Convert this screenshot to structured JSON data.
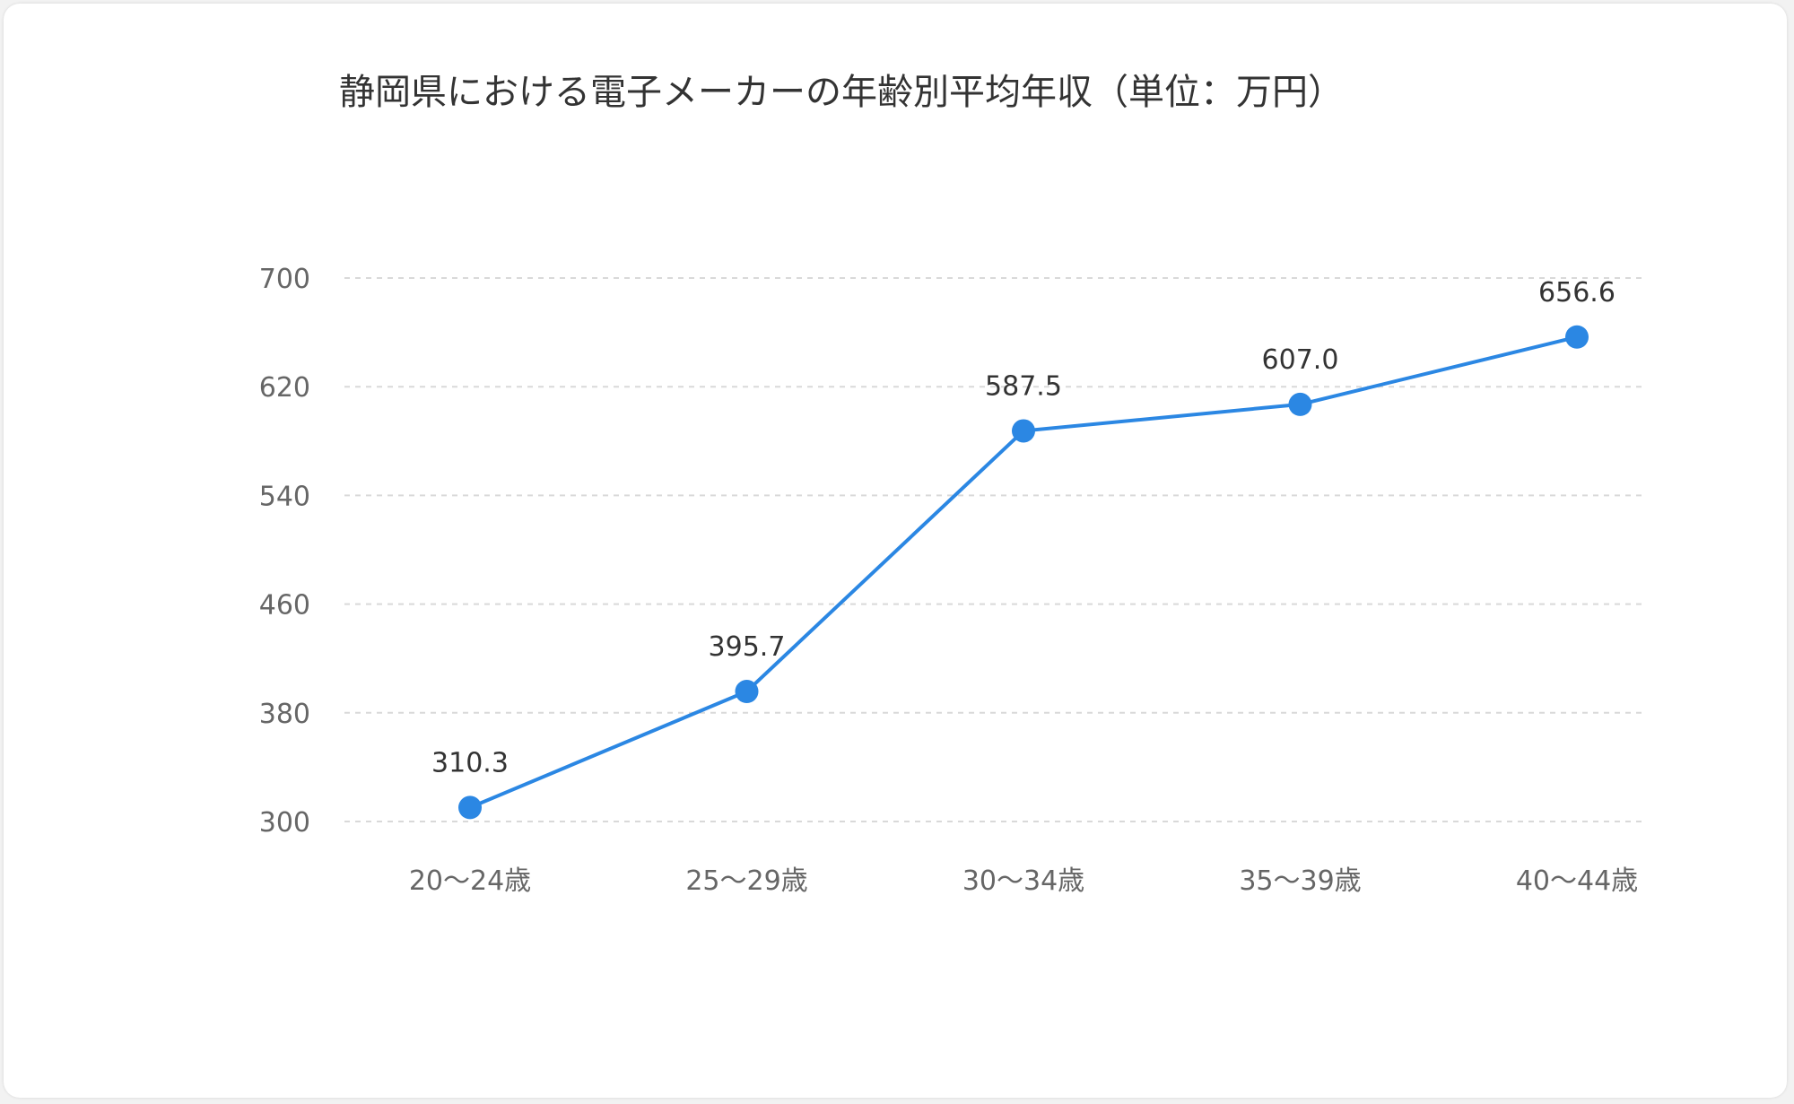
{
  "chart_data": {
    "type": "line",
    "title": "静岡県における電子メーカーの年齢別平均年収（単位：万円）",
    "xlabel": "",
    "ylabel": "",
    "categories": [
      "20〜24歳",
      "25〜29歳",
      "30〜34歳",
      "35〜39歳",
      "40〜44歳"
    ],
    "series": [
      {
        "values": [
          310.3,
          395.7,
          587.5,
          607.0,
          656.6
        ],
        "labels": [
          "310.3",
          "395.7",
          "587.5",
          "607.0",
          "656.6"
        ],
        "color": "#2b87e3"
      }
    ],
    "yticks": [
      "700",
      "620",
      "540",
      "460",
      "380",
      "300"
    ],
    "ylim": [
      300,
      700
    ],
    "grid": true,
    "legend": "none"
  }
}
